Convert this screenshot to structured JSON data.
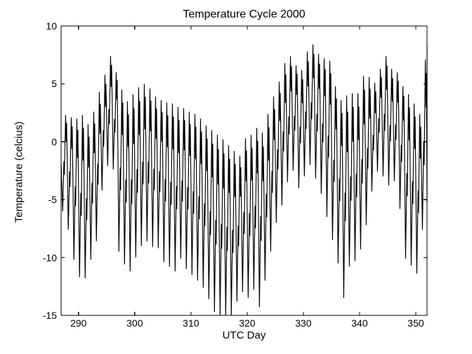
{
  "figure": {
    "background_color": "#ffffff",
    "text_color": "#000000"
  },
  "chart_data": {
    "type": "line",
    "title": "Temperature Cycle 2000",
    "xlabel": "UTC Day",
    "ylabel": "Temperature (celcius)",
    "xlim": [
      286.9,
      352.0
    ],
    "ylim": [
      -15,
      10
    ],
    "xticks": [
      290,
      300,
      310,
      320,
      330,
      340,
      350
    ],
    "yticks": [
      -15,
      -10,
      -5,
      0,
      5,
      10
    ],
    "grid": false,
    "legend": "none",
    "box": true,
    "line_color": "#000000",
    "series": [
      {
        "name": "temperature",
        "encoding": "daily diurnal-cycle envelope: per UTC day, afternoon max (tmax) and night min (tmin), degrees celsius; minima clipped at -15",
        "day": [
          287,
          288,
          289,
          290,
          291,
          292,
          293,
          294,
          295,
          296,
          297,
          298,
          299,
          300,
          301,
          302,
          303,
          304,
          305,
          306,
          307,
          308,
          309,
          310,
          311,
          312,
          313,
          314,
          315,
          316,
          317,
          318,
          319,
          320,
          321,
          322,
          323,
          324,
          325,
          326,
          327,
          328,
          329,
          330,
          331,
          332,
          333,
          334,
          335,
          336,
          337,
          338,
          339,
          340,
          341,
          342,
          343,
          344,
          345,
          346,
          347,
          348,
          349,
          350,
          351,
          352
        ],
        "tmax": [
          2.3,
          2.1,
          2.0,
          2.3,
          1.5,
          2.6,
          4.3,
          5.8,
          7.4,
          6.0,
          4.5,
          3.5,
          4.1,
          4.7,
          5.0,
          4.6,
          3.9,
          3.6,
          3.4,
          3.3,
          3.0,
          2.9,
          2.6,
          2.4,
          2.0,
          1.4,
          1.0,
          0.6,
          0.2,
          -0.3,
          -0.8,
          -1.2,
          0.3,
          0.6,
          1.2,
          0.8,
          2.4,
          3.9,
          5.2,
          6.8,
          7.4,
          6.6,
          6.2,
          7.8,
          8.4,
          7.6,
          7.2,
          7.0,
          4.8,
          3.6,
          4.0,
          4.2,
          4.2,
          5.7,
          5.6,
          5.1,
          6.3,
          7.4,
          6.3,
          6.0,
          4.8,
          4.1,
          3.3,
          2.4,
          7.1,
          8.3
        ],
        "tmin": [
          -6.0,
          -7.6,
          -10.2,
          -11.7,
          -11.8,
          -10.2,
          -8.6,
          -4.2,
          -2.1,
          -2.4,
          -9.5,
          -10.6,
          -11.2,
          -10.0,
          -9.0,
          -8.6,
          -9.1,
          -9.2,
          -10.4,
          -10.8,
          -11.2,
          -10.1,
          -11.0,
          -11.5,
          -12.0,
          -12.6,
          -13.6,
          -14.7,
          -15.0,
          -15.0,
          -15.0,
          -13.8,
          -13.0,
          -13.5,
          -12.8,
          -14.3,
          -12.0,
          -9.5,
          -7.0,
          -5.5,
          -3.5,
          -2.5,
          -4.0,
          -3.0,
          -2.0,
          -3.2,
          -4.5,
          -6.5,
          -8.5,
          -10.5,
          -13.5,
          -10.8,
          -10.3,
          -9.3,
          -7.2,
          -4.3,
          -2.6,
          -3.0,
          -3.8,
          -3.4,
          -5.8,
          -10.1,
          -10.7,
          -11.4,
          -7.6,
          -5.3
        ]
      }
    ]
  }
}
